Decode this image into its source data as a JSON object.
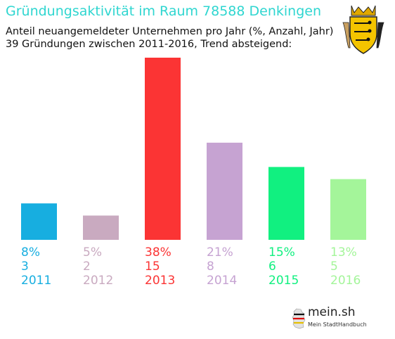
{
  "header": {
    "title": "Gründungsaktivität im Raum 78588 Denkingen",
    "subtitle_line1": "Anteil neuangemeldeter Unternehmen pro Jahr (%, Anzahl, Jahr)",
    "subtitle_line2": "39 Gründungen zwischen 2011-2016, Trend absteigend:"
  },
  "branding": {
    "name": "mein.sh",
    "tagline": "Mein StadtHandbuch"
  },
  "icons": {
    "coat_of_arms": "baden-wuerttemberg-coat-of-arms-icon",
    "map": "germany-map-icon"
  },
  "chart_data": {
    "type": "bar",
    "categories": [
      "2011",
      "2012",
      "2013",
      "2014",
      "2015",
      "2016"
    ],
    "values": [
      3,
      2,
      15,
      8,
      6,
      5
    ],
    "percent_labels": [
      "8%",
      "5%",
      "38%",
      "21%",
      "15%",
      "13%"
    ],
    "colors": [
      "#17aee0",
      "#c9aac0",
      "#fb3434",
      "#c6a3d2",
      "#11f080",
      "#a4f59a"
    ],
    "title": "Gründungsaktivität im Raum 78588 Denkingen",
    "xlabel": "",
    "ylabel": "",
    "ylim": [
      0,
      15
    ],
    "grid": false
  }
}
